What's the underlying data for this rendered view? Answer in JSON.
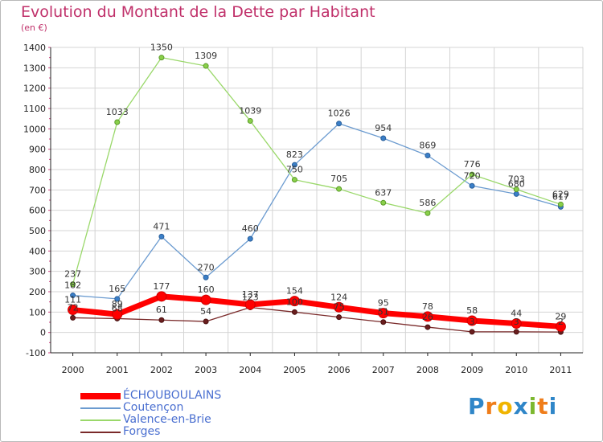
{
  "title": "Evolution du Montant de la Dette par Habitant",
  "subtitle": "(en €)",
  "logo": {
    "text": "Proxiti",
    "letters": [
      "P",
      "r",
      "o",
      "x",
      "i",
      "t",
      "i"
    ],
    "colors": [
      "#2f86c8",
      "#ef7d1a",
      "#f0b400",
      "#2f86c8",
      "#7cb82f",
      "#ef7d1a",
      "#2f86c8"
    ]
  },
  "chart_data": {
    "type": "line",
    "title": "Evolution du Montant de la Dette par Habitant",
    "ylabel": "(en €)",
    "xlabel": "",
    "ylim": [
      -100,
      1400
    ],
    "y_ticks": [
      -100,
      0,
      100,
      200,
      300,
      400,
      500,
      600,
      700,
      800,
      900,
      1000,
      1100,
      1200,
      1300,
      1400
    ],
    "grid": true,
    "legend_position": "bottom-left",
    "x": [
      "2000",
      "2001",
      "2002",
      "2003",
      "2004",
      "2005",
      "2006",
      "2007",
      "2008",
      "2009",
      "2010",
      "2011"
    ],
    "series": [
      {
        "name": "ÉCHOUBOULAINS",
        "color": "#ff0000",
        "values": [
          111,
          89,
          177,
          160,
          137,
          154,
          124,
          95,
          78,
          58,
          44,
          29
        ]
      },
      {
        "name": "Coutençon",
        "color": "#6b9bd0",
        "values": [
          182,
          165,
          471,
          270,
          460,
          823,
          1026,
          954,
          869,
          720,
          680,
          617
        ]
      },
      {
        "name": "Valence-en-Brie",
        "color": "#9ad86a",
        "values": [
          237,
          1033,
          1350,
          1309,
          1039,
          750,
          705,
          637,
          586,
          776,
          703,
          629
        ]
      },
      {
        "name": "Forges",
        "color": "#7a2a2a",
        "values": [
          72,
          68,
          61,
          54,
          123,
          100,
          75,
          51,
          26,
          3,
          3,
          2
        ]
      }
    ]
  }
}
